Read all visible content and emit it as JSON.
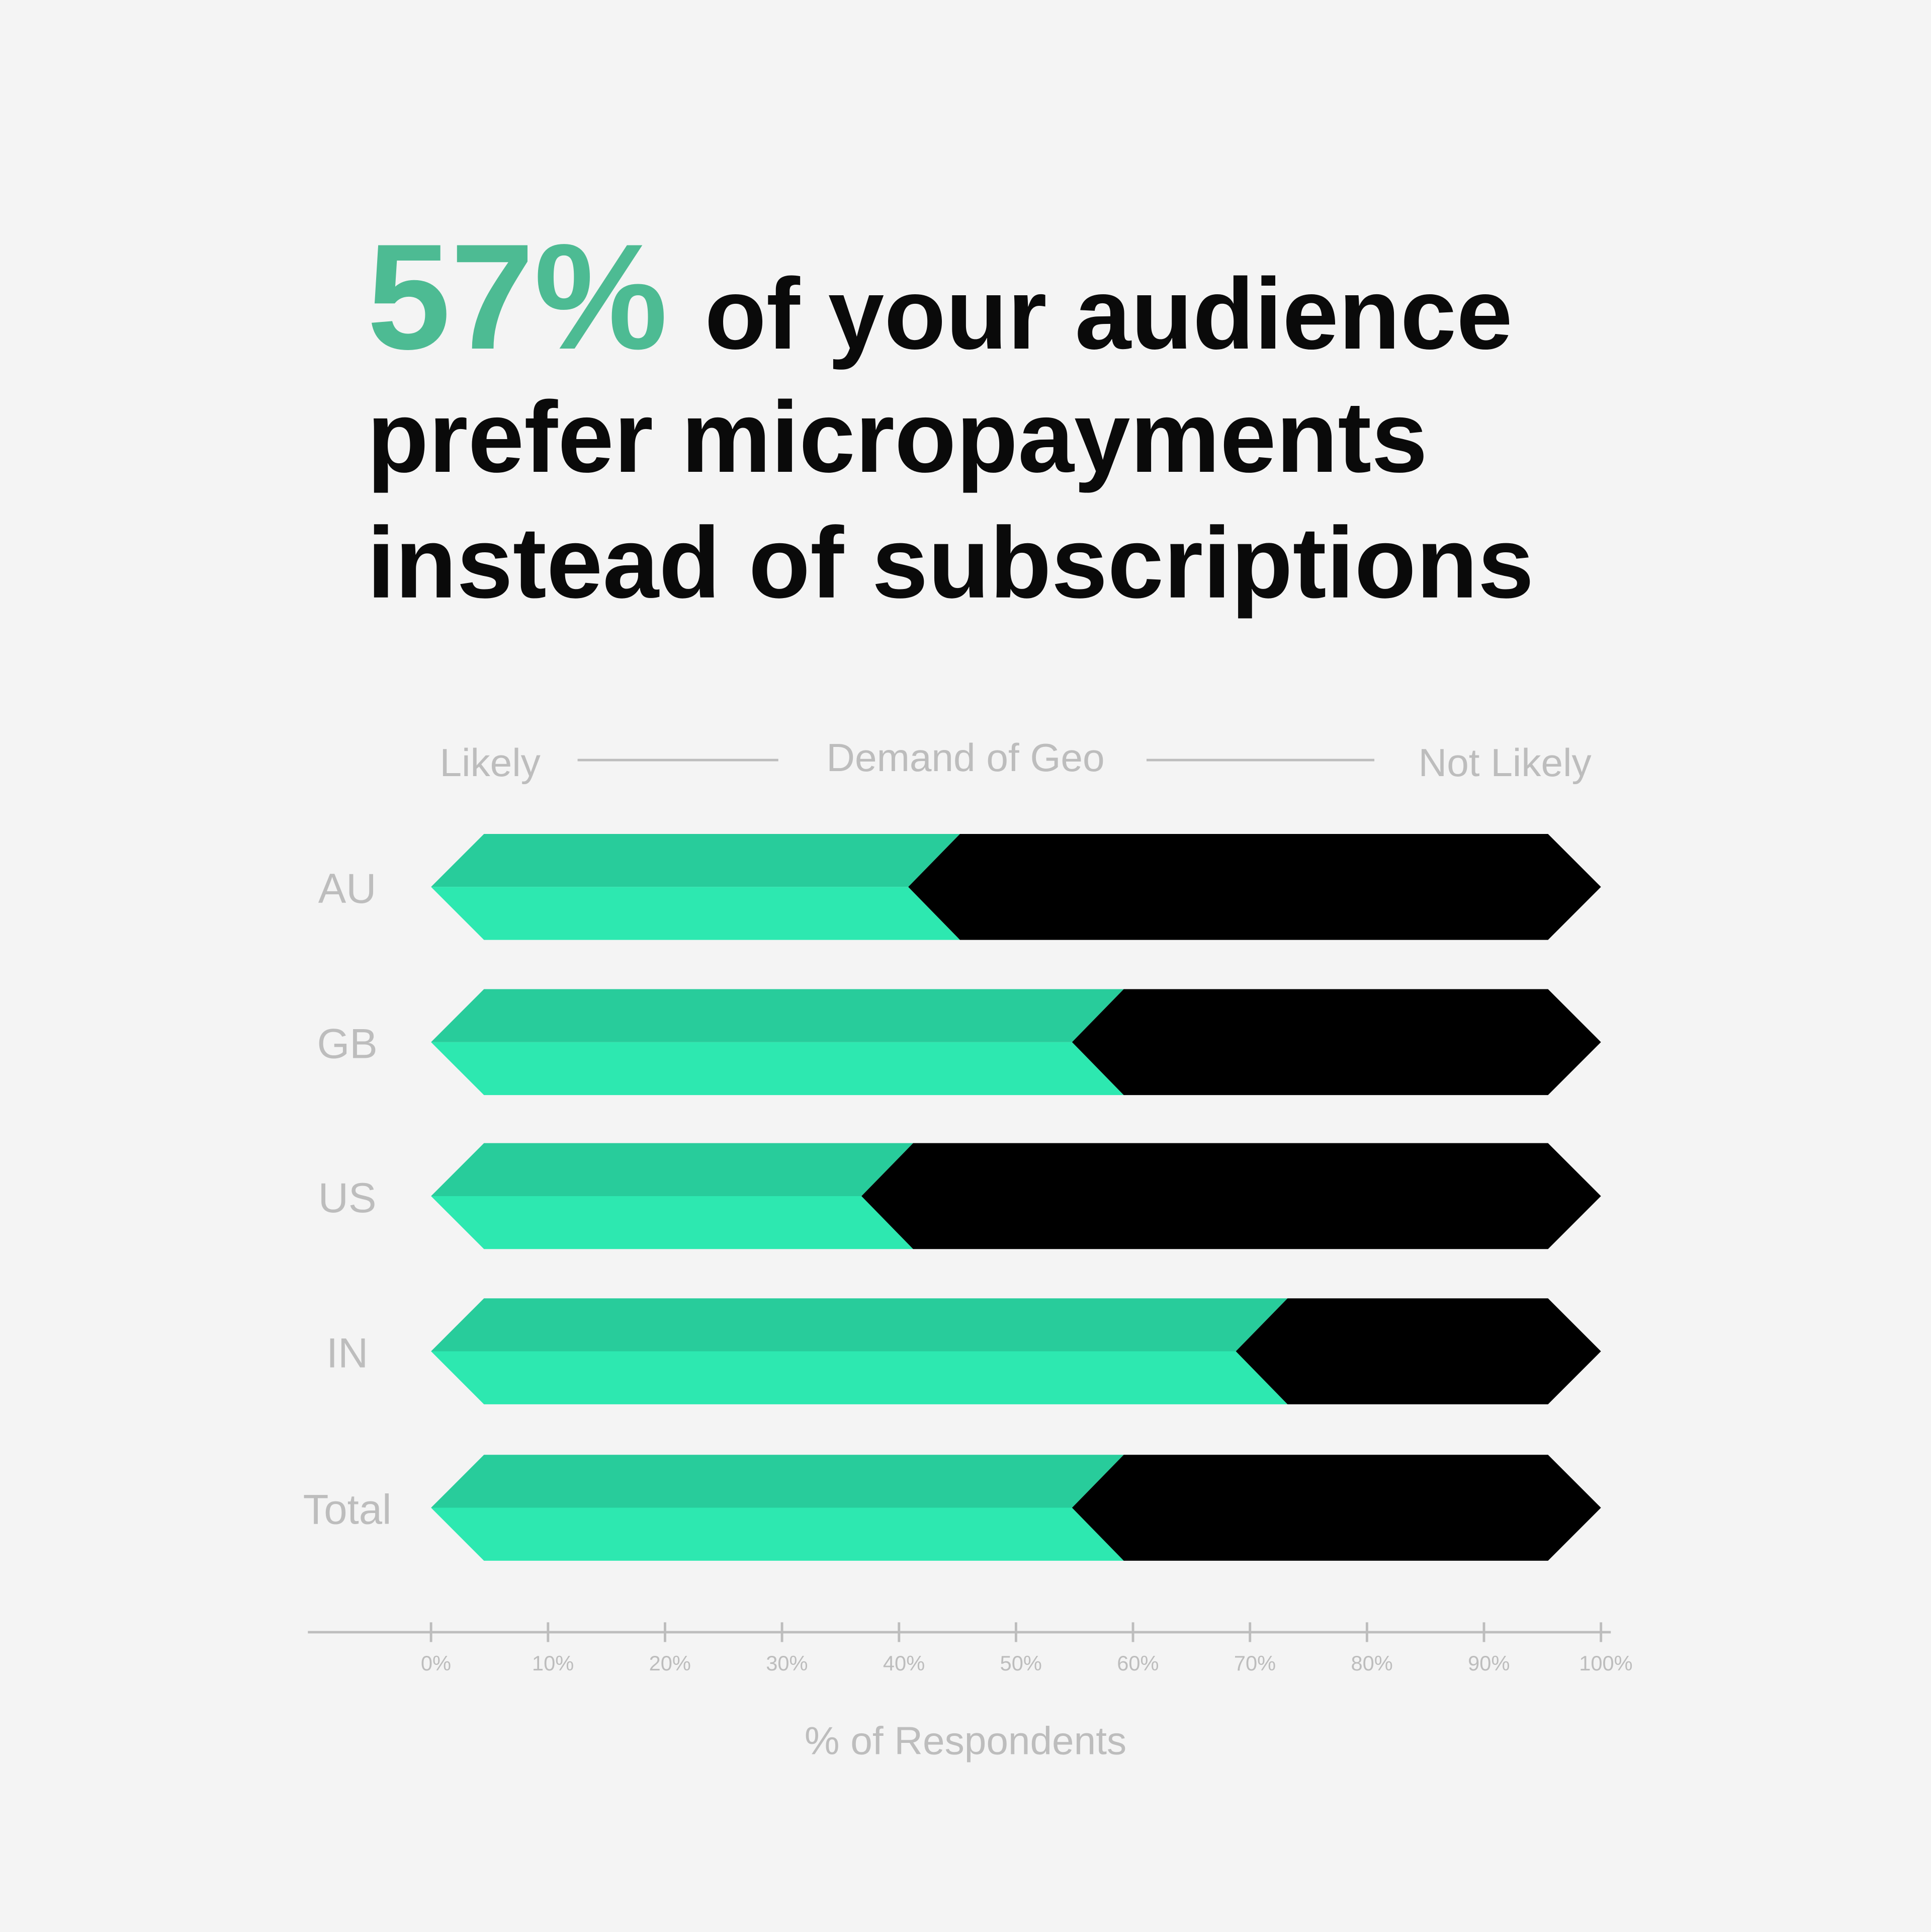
{
  "chart_data": {
    "type": "stacked-bar-h",
    "title_highlight": "57%",
    "title_lines": [
      "of your audience",
      "prefer micropayments",
      "instead of subscriptions"
    ],
    "header": "Demand of Geo",
    "xlabel": "% of Respondents",
    "categories": [
      "AU",
      "GB",
      "US",
      "IN",
      "Total"
    ],
    "series": [
      {
        "name": "Likely",
        "color": "#2de8b0",
        "values": [
          43,
          57,
          39,
          71,
          57
        ]
      },
      {
        "name": "Not Likely",
        "color": "#000000",
        "values": [
          57,
          43,
          61,
          29,
          43
        ]
      }
    ],
    "xlim": [
      0,
      100
    ],
    "xticks": [
      {
        "value": 0,
        "label": "0%"
      },
      {
        "value": 10,
        "label": "10%"
      },
      {
        "value": 20,
        "label": "20%"
      },
      {
        "value": 30,
        "label": "30%"
      },
      {
        "value": 40,
        "label": "40%"
      },
      {
        "value": 50,
        "label": "50%"
      },
      {
        "value": 60,
        "label": "60%"
      },
      {
        "value": 70,
        "label": "70%"
      },
      {
        "value": 80,
        "label": "80%"
      },
      {
        "value": 90,
        "label": "90%"
      },
      {
        "value": 100,
        "label": "100%"
      }
    ]
  }
}
